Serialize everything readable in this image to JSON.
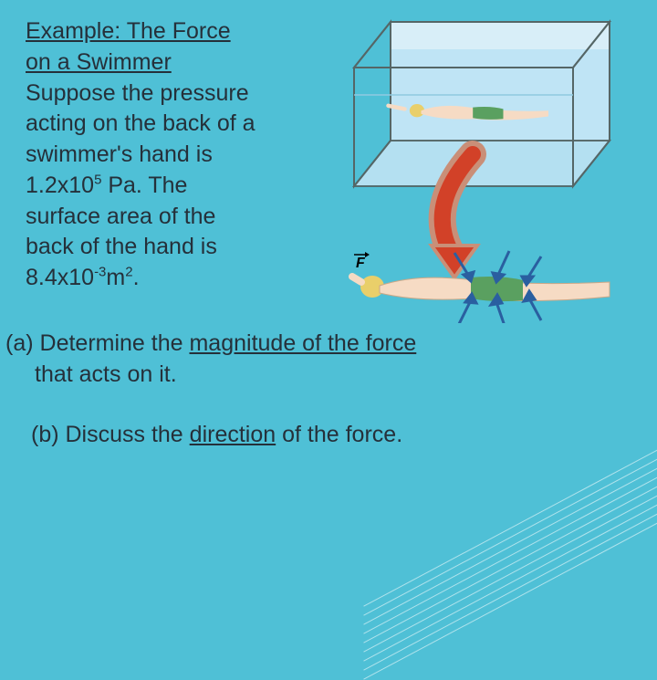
{
  "title_line1": "Example: The Force",
  "title_line2": "on a Swimmer",
  "body1": "Suppose the pressure",
  "body2": "acting on the back of a",
  "body3": "swimmer's hand is",
  "body4_prefix": "1.2x10",
  "body4_exp": "5",
  "body4_suffix": " Pa.  The",
  "body5": "surface area of the",
  "body6": "back of the hand is",
  "body7_prefix": "8.4x10",
  "body7_exp": "-3",
  "body7_unit": "m",
  "body7_unitexp": "2",
  "body7_end": ".",
  "qa_label": "(a)",
  "qa_text1": "  Determine the ",
  "qa_u": "magnitude of the force",
  "qa_text2": "that acts on it.",
  "qb_label": "(b) Discuss the ",
  "qb_u": "direction",
  "qb_text2": " of the force.",
  "figure": {
    "tank_stroke": "#3a4a55",
    "tank_fill_top": "#d8eef8",
    "water_fill": "#bfe4f5",
    "swimmer_skin": "#f6dbc4",
    "swimmer_suit": "#5aa060",
    "swimmer_hair": "#e9cf6a",
    "arrow_red_outer": "#c98f78",
    "arrow_red_inner": "#d24128",
    "force_arrow": "#2a5fa0",
    "force_label": "F",
    "bg": "#ffffff"
  },
  "decor": {
    "num_lines": 9,
    "spacing": 10,
    "base_bottom": 30,
    "angle": -28,
    "color": "rgba(255,255,255,0.55)"
  }
}
